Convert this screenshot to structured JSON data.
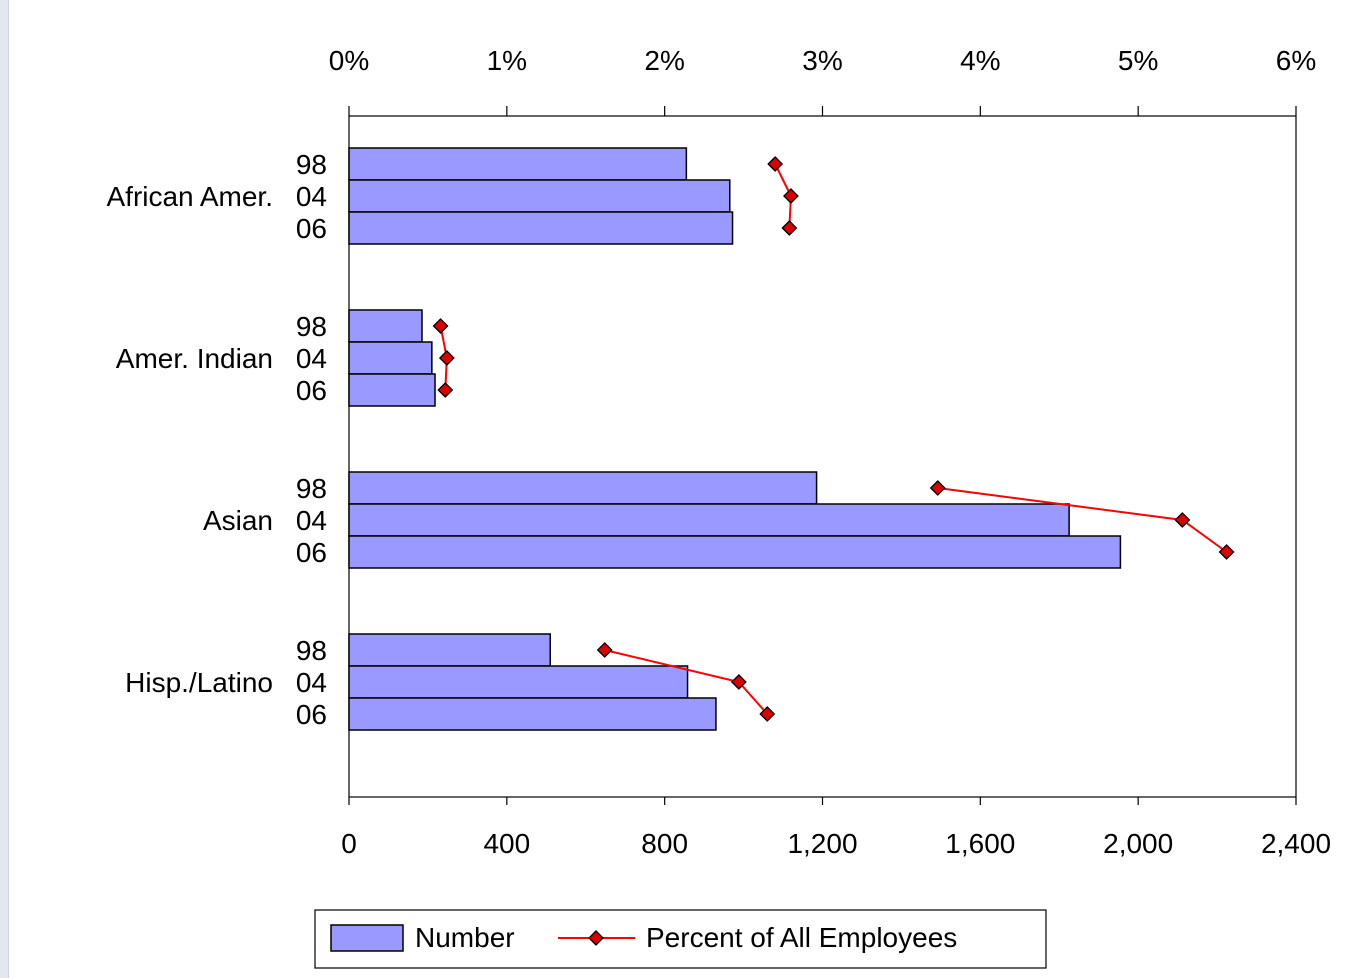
{
  "chart_data": {
    "type": "bar",
    "orientation": "horizontal",
    "categories": [
      "African Amer.",
      "Amer. Indian",
      "Asian",
      "Hisp./Latino"
    ],
    "sub_labels": [
      "98",
      "04",
      "06"
    ],
    "series": [
      {
        "name": "Number",
        "type": "bar",
        "axis": "bottom",
        "color": "#9999ff",
        "values": [
          [
            855,
            965,
            972
          ],
          [
            185,
            210,
            218
          ],
          [
            1185,
            1825,
            1955
          ],
          [
            510,
            858,
            930
          ]
        ]
      },
      {
        "name": "Percent of All Employees",
        "type": "line",
        "axis": "top",
        "color": "#ff0000",
        "marker_color": "#dd0000",
        "values": [
          [
            2.7,
            2.8,
            2.79
          ],
          [
            0.58,
            0.62,
            0.61
          ],
          [
            3.73,
            5.28,
            5.56
          ],
          [
            1.62,
            2.47,
            2.65
          ]
        ]
      }
    ],
    "x_bottom": {
      "ticks": [
        "0",
        "400",
        "800",
        "1,200",
        "1,600",
        "2,000",
        "2,400"
      ],
      "range": [
        0,
        2400
      ]
    },
    "x_top": {
      "ticks": [
        "0%",
        "1%",
        "2%",
        "3%",
        "4%",
        "5%",
        "6%"
      ],
      "range": [
        0,
        6
      ]
    },
    "grid": false,
    "legend": {
      "position": "bottom",
      "entries": [
        "Number",
        "Percent of All Employees"
      ]
    }
  }
}
